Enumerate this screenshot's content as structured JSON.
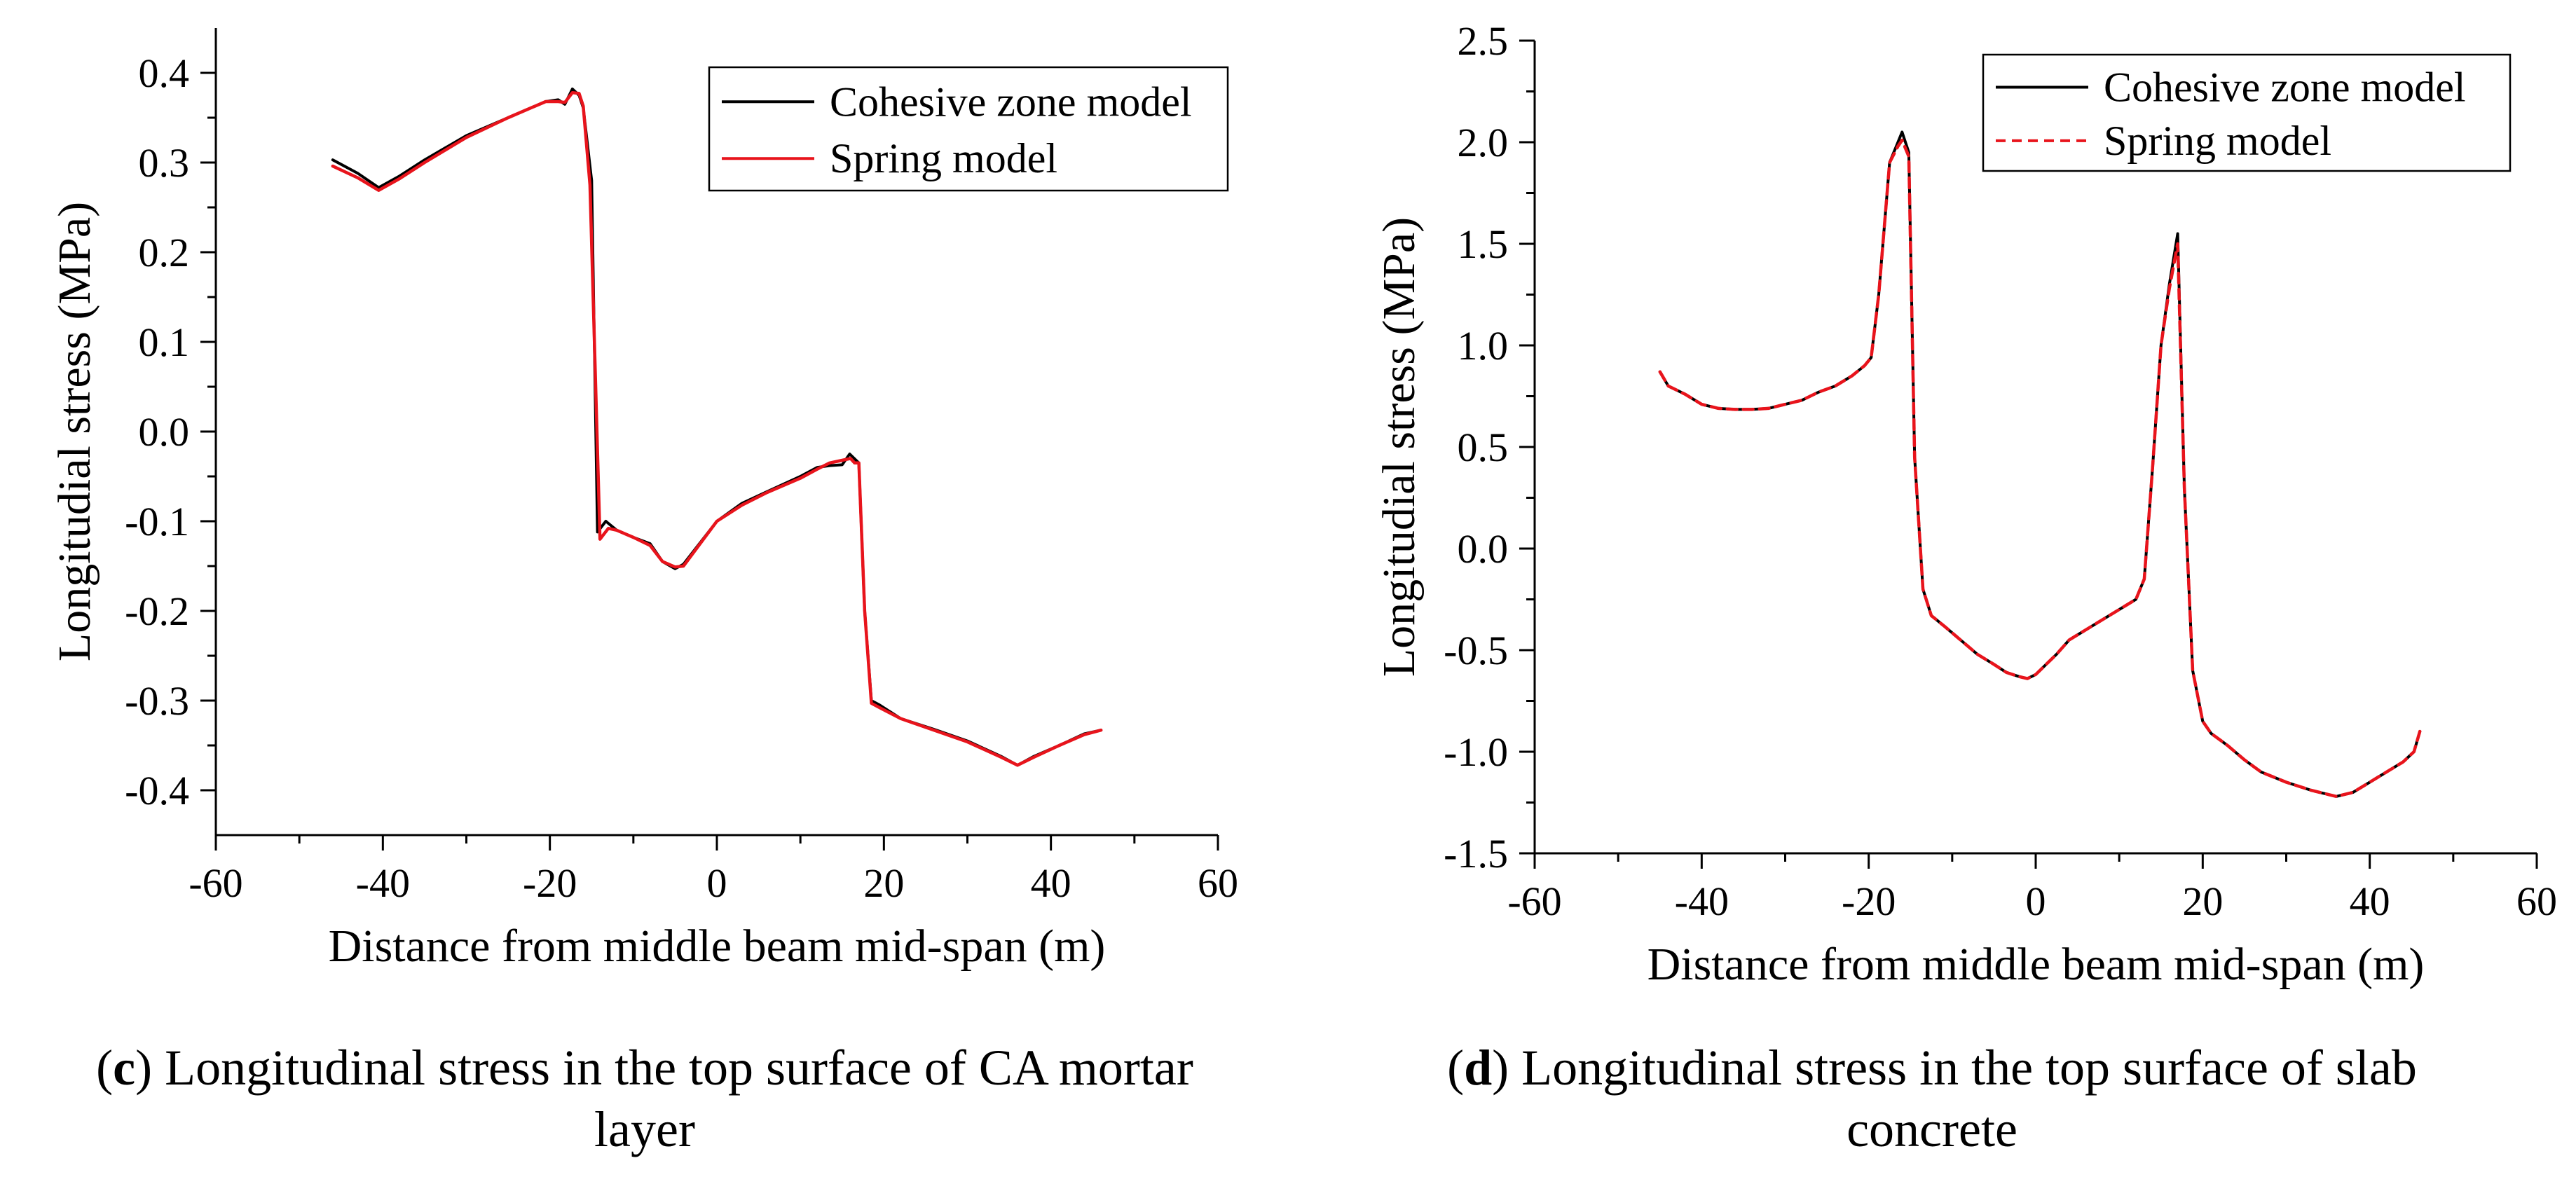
{
  "chart_data": [
    {
      "id": "c",
      "type": "line",
      "xlabel": "Distance from middle beam mid-span (m)",
      "ylabel": "Longitudial stress (MPa)",
      "xlim": [
        -60,
        60
      ],
      "ylim": [
        -0.45,
        0.45
      ],
      "xticks": [
        -60,
        -40,
        -20,
        0,
        20,
        40,
        60
      ],
      "xtick_labels": [
        "-60",
        "-40",
        "-20",
        "0",
        "20",
        "40",
        "60"
      ],
      "yticks": [
        -0.4,
        -0.3,
        -0.2,
        -0.1,
        0.0,
        0.1,
        0.2,
        0.3,
        0.4
      ],
      "ytick_labels": [
        "-0.4",
        "-0.3",
        "-0.2",
        "-0.1",
        "0.0",
        "0.1",
        "0.2",
        "0.3",
        "0.4"
      ],
      "legend_position": "top-right",
      "series": [
        {
          "name": "Cohesive zone model",
          "color": "#000000",
          "dash": "solid",
          "x": [
            -46,
            -43,
            -40.5,
            -38,
            -35,
            -30,
            -25,
            -20.5,
            -19,
            -18.2,
            -17.3,
            -16.5,
            -16,
            -15,
            -14.3,
            -13.3,
            -12,
            -10,
            -8,
            -6.5,
            -5,
            -4,
            0,
            3,
            6,
            10,
            12,
            13.5,
            15,
            15.9,
            17,
            17.7,
            18.5,
            19.5,
            22,
            26,
            30,
            34,
            36,
            38,
            41,
            44,
            46
          ],
          "y": [
            0.303,
            0.288,
            0.272,
            0.285,
            0.303,
            0.33,
            0.35,
            0.368,
            0.37,
            0.365,
            0.382,
            0.375,
            0.361,
            0.28,
            -0.112,
            -0.1,
            -0.11,
            -0.118,
            -0.125,
            -0.145,
            -0.153,
            -0.148,
            -0.1,
            -0.08,
            -0.067,
            -0.05,
            -0.04,
            -0.038,
            -0.037,
            -0.025,
            -0.035,
            -0.2,
            -0.3,
            -0.305,
            -0.32,
            -0.332,
            -0.345,
            -0.362,
            -0.372,
            -0.362,
            -0.35,
            -0.337,
            -0.333
          ]
        },
        {
          "name": "Spring model",
          "color": "#e8141c",
          "dash": "solid",
          "x": [
            -46,
            -43,
            -40.5,
            -38,
            -35,
            -30,
            -25,
            -20.5,
            -19,
            -18.2,
            -17.3,
            -16.5,
            -16,
            -15.2,
            -14,
            -13,
            -12,
            -10,
            -8,
            -6.5,
            -5,
            -4,
            0,
            3,
            6,
            10,
            12,
            13.5,
            15,
            16,
            16.5,
            17,
            17.7,
            18.5,
            19.5,
            22,
            26,
            30,
            34,
            36,
            38,
            41,
            44,
            46
          ],
          "y": [
            0.296,
            0.283,
            0.269,
            0.282,
            0.3,
            0.328,
            0.35,
            0.368,
            0.368,
            0.367,
            0.378,
            0.377,
            0.363,
            0.275,
            -0.12,
            -0.108,
            -0.11,
            -0.118,
            -0.127,
            -0.145,
            -0.151,
            -0.15,
            -0.1,
            -0.082,
            -0.068,
            -0.052,
            -0.042,
            -0.035,
            -0.032,
            -0.03,
            -0.035,
            -0.035,
            -0.2,
            -0.303,
            -0.308,
            -0.32,
            -0.333,
            -0.346,
            -0.363,
            -0.372,
            -0.363,
            -0.35,
            -0.338,
            -0.333
          ]
        }
      ]
    },
    {
      "id": "d",
      "type": "line",
      "xlabel": "Distance from middle beam mid-span (m)",
      "ylabel": "Longitudial stress (MPa)",
      "xlim": [
        -60,
        60
      ],
      "ylim": [
        -1.5,
        2.5
      ],
      "xticks": [
        -60,
        -40,
        -20,
        0,
        20,
        40,
        60
      ],
      "xtick_labels": [
        "-60",
        "-40",
        "-20",
        "0",
        "20",
        "40",
        "60"
      ],
      "yticks": [
        -1.5,
        -1.0,
        -0.5,
        0.0,
        0.5,
        1.0,
        1.5,
        2.0,
        2.5
      ],
      "ytick_labels": [
        "-1.5",
        "-1.0",
        "-0.5",
        "0.0",
        "0.5",
        "1.0",
        "1.5",
        "2.0",
        "2.5"
      ],
      "legend_position": "top-right",
      "series": [
        {
          "name": "Cohesive zone model",
          "color": "#000000",
          "dash": "solid",
          "x": [
            -45,
            -44,
            -42,
            -40,
            -38,
            -36,
            -34,
            -32,
            -30,
            -28,
            -26,
            -24,
            -22,
            -20.5,
            -19.7,
            -18.8,
            -17.5,
            -16.5,
            -16,
            -15.2,
            -14.5,
            -13.5,
            -12.5,
            -11,
            -9,
            -7,
            -5,
            -3.5,
            -2,
            -1,
            0,
            1,
            2.5,
            4,
            6,
            8,
            10,
            12,
            13,
            14,
            15,
            16,
            17,
            17.8,
            18.8,
            20,
            21,
            23,
            25,
            27,
            30,
            33,
            35,
            36,
            38,
            40,
            42,
            44,
            45.3,
            46
          ],
          "y": [
            0.87,
            0.8,
            0.76,
            0.71,
            0.69,
            0.685,
            0.685,
            0.69,
            0.71,
            0.73,
            0.77,
            0.8,
            0.85,
            0.9,
            0.94,
            1.25,
            1.9,
            2.0,
            2.05,
            1.95,
            0.45,
            -0.2,
            -0.33,
            -0.38,
            -0.45,
            -0.52,
            -0.57,
            -0.61,
            -0.63,
            -0.64,
            -0.62,
            -0.58,
            -0.52,
            -0.45,
            -0.4,
            -0.35,
            -0.3,
            -0.25,
            -0.15,
            0.4,
            1.0,
            1.3,
            1.55,
            0.3,
            -0.6,
            -0.85,
            -0.91,
            -0.97,
            -1.04,
            -1.1,
            -1.15,
            -1.19,
            -1.21,
            -1.22,
            -1.2,
            -1.15,
            -1.1,
            -1.05,
            -1.0,
            -0.9
          ]
        },
        {
          "name": "Spring model",
          "color": "#e8141c",
          "dash": "dashed",
          "x": [
            -45,
            -44,
            -42,
            -40,
            -38,
            -36,
            -34,
            -32,
            -30,
            -28,
            -26,
            -24,
            -22,
            -20.5,
            -19.7,
            -18.8,
            -17.5,
            -16.5,
            -16,
            -15.2,
            -14.5,
            -13.5,
            -12.5,
            -11,
            -9,
            -7,
            -5,
            -3.5,
            -2,
            -1,
            0,
            1,
            2.5,
            4,
            6,
            8,
            10,
            12,
            13,
            14,
            15,
            16,
            17,
            17.8,
            18.8,
            20,
            21,
            23,
            25,
            27,
            30,
            33,
            35,
            36,
            38,
            40,
            42,
            44,
            45.3,
            46
          ],
          "y": [
            0.87,
            0.8,
            0.76,
            0.71,
            0.69,
            0.685,
            0.685,
            0.69,
            0.71,
            0.73,
            0.77,
            0.8,
            0.85,
            0.9,
            0.94,
            1.25,
            1.9,
            1.98,
            2.01,
            1.93,
            0.45,
            -0.2,
            -0.33,
            -0.38,
            -0.45,
            -0.52,
            -0.57,
            -0.61,
            -0.63,
            -0.64,
            -0.62,
            -0.58,
            -0.52,
            -0.45,
            -0.4,
            -0.35,
            -0.3,
            -0.25,
            -0.15,
            0.4,
            1.0,
            1.28,
            1.5,
            0.3,
            -0.6,
            -0.85,
            -0.91,
            -0.97,
            -1.04,
            -1.1,
            -1.15,
            -1.19,
            -1.21,
            -1.22,
            -1.2,
            -1.15,
            -1.1,
            -1.05,
            -1.0,
            -0.9
          ]
        }
      ]
    }
  ],
  "captions": {
    "c": {
      "letter": "c",
      "text_line1": " Longitudinal stress in the top surface of CA mortar",
      "text_line2": "layer"
    },
    "d": {
      "letter": "d",
      "text_line1": " Longitudinal stress in the top surface of slab",
      "text_line2": "concrete"
    }
  }
}
